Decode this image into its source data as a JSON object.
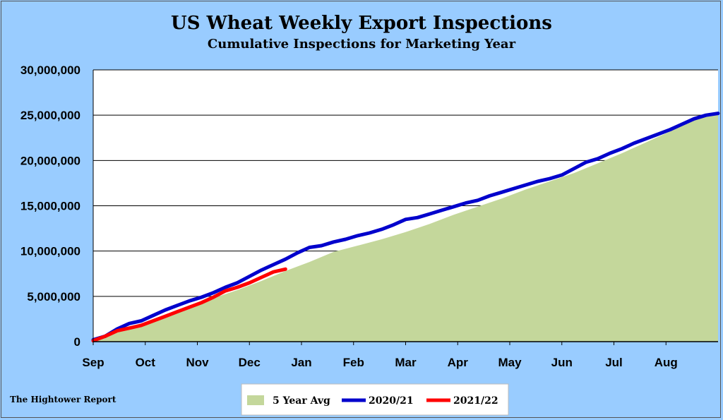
{
  "chart_data": {
    "type": "area",
    "title": "US Wheat Weekly Export Inspections",
    "subtitle": "Cumulative  Inspections for Marketing Year",
    "categories": [
      "Sep",
      "Oct",
      "Nov",
      "Dec",
      "Jan",
      "Feb",
      "Mar",
      "Apr",
      "May",
      "Jun",
      "Jul",
      "Aug"
    ],
    "yticks": [
      "0",
      "5,000,000",
      "10,000,000",
      "15,000,000",
      "20,000,000",
      "25,000,000",
      "30,000,000"
    ],
    "ylim": [
      0,
      30000000
    ],
    "xlim": [
      0,
      52
    ],
    "grid": true,
    "legend_position": "bottom-center",
    "series": [
      {
        "name": "5 Year Avg",
        "style": "area",
        "color": "#c4d79b",
        "x": [
          0,
          2,
          4,
          6,
          8,
          10,
          12,
          14,
          16,
          18,
          20,
          22,
          24,
          26,
          28,
          30,
          32,
          34,
          36,
          38,
          40,
          42,
          44,
          46,
          48,
          50,
          52
        ],
        "values": [
          0,
          1000000,
          1900000,
          2900000,
          3900000,
          4800000,
          5700000,
          6700000,
          7800000,
          8800000,
          9900000,
          10600000,
          11300000,
          12100000,
          13000000,
          14000000,
          14900000,
          15800000,
          16800000,
          17700000,
          18600000,
          19700000,
          20800000,
          22000000,
          23200000,
          24500000,
          25100000
        ]
      },
      {
        "name": "2020/21",
        "style": "line",
        "color": "#0000cc",
        "x": [
          0,
          1,
          2,
          3,
          4,
          5,
          6,
          7,
          8,
          9,
          10,
          11,
          12,
          13,
          14,
          15,
          16,
          17,
          18,
          19,
          20,
          21,
          22,
          23,
          24,
          25,
          26,
          27,
          28,
          29,
          30,
          31,
          32,
          33,
          34,
          35,
          36,
          37,
          38,
          39,
          40,
          41,
          42,
          43,
          44,
          45,
          46,
          47,
          48,
          49,
          50,
          51,
          52
        ],
        "values": [
          200000,
          600000,
          1400000,
          2000000,
          2300000,
          2900000,
          3500000,
          4000000,
          4500000,
          4900000,
          5400000,
          6000000,
          6500000,
          7200000,
          7900000,
          8500000,
          9100000,
          9800000,
          10400000,
          10600000,
          11000000,
          11300000,
          11700000,
          12000000,
          12400000,
          12900000,
          13500000,
          13700000,
          14100000,
          14500000,
          14900000,
          15300000,
          15600000,
          16100000,
          16500000,
          16900000,
          17300000,
          17700000,
          18000000,
          18400000,
          19100000,
          19800000,
          20200000,
          20800000,
          21300000,
          21900000,
          22400000,
          22900000,
          23400000,
          24000000,
          24600000,
          25000000,
          25200000
        ]
      },
      {
        "name": "2021/22",
        "style": "line",
        "color": "#ff0000",
        "x": [
          0,
          1,
          2,
          3,
          4,
          5,
          6,
          7,
          8,
          9,
          10,
          11,
          12,
          13,
          14,
          15,
          16
        ],
        "values": [
          100000,
          600000,
          1200000,
          1500000,
          1800000,
          2300000,
          2800000,
          3300000,
          3800000,
          4300000,
          4900000,
          5600000,
          6000000,
          6500000,
          7100000,
          7700000,
          8000000
        ]
      }
    ]
  },
  "source_label": "The Hightower Report"
}
